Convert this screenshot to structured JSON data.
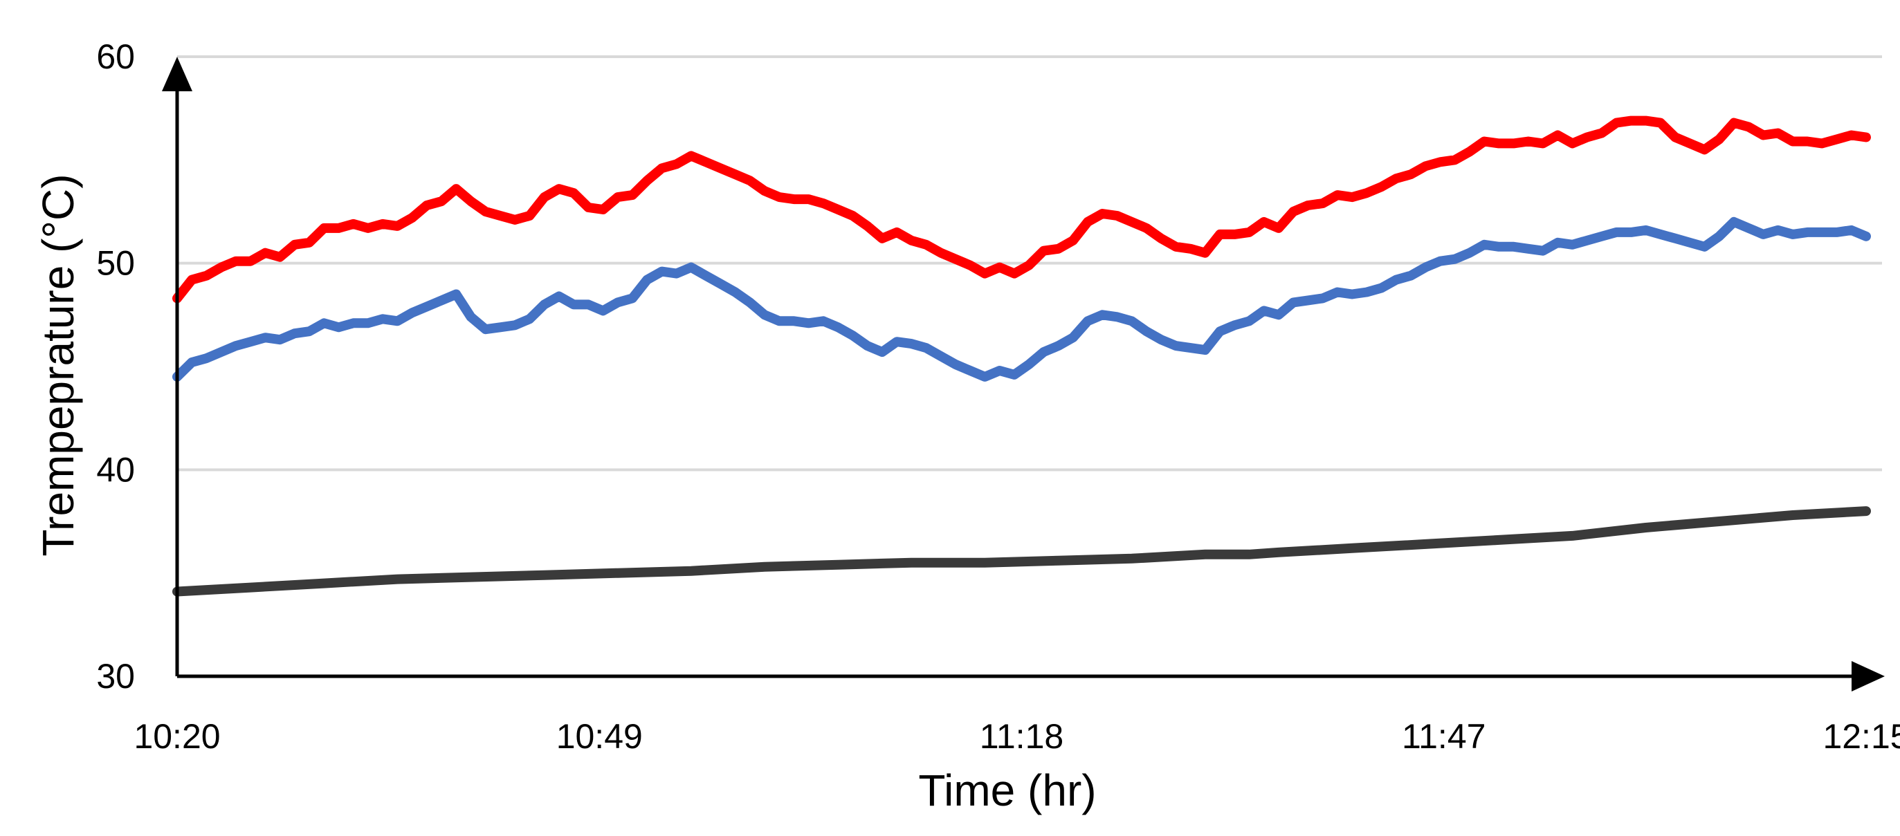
{
  "chart_data": {
    "type": "line",
    "title": "",
    "xlabel": "Time (hr)",
    "ylabel": "Trempeprature (°C)",
    "ylim": [
      30,
      60
    ],
    "xlim": [
      "10:20",
      "12:15"
    ],
    "x_ticks": [
      "10:20",
      "10:49",
      "11:18",
      "11:47",
      "12:15"
    ],
    "y_ticks": [
      30,
      40,
      50,
      60
    ],
    "grid": true,
    "legend": "none",
    "x_unit": "minutes since 10:20",
    "series": [
      {
        "color": "#ff0000",
        "x": [
          0,
          1,
          2,
          3,
          4,
          5,
          6,
          7,
          8,
          9,
          10,
          11,
          12,
          13,
          14,
          15,
          16,
          17,
          18,
          19,
          20,
          21,
          22,
          23,
          24,
          25,
          26,
          27,
          28,
          29,
          30,
          31,
          32,
          33,
          34,
          35,
          36,
          37,
          38,
          39,
          40,
          41,
          42,
          43,
          44,
          45,
          46,
          47,
          48,
          49,
          50,
          51,
          52,
          53,
          54,
          55,
          56,
          57,
          58,
          59,
          60,
          61,
          62,
          63,
          64,
          65,
          66,
          67,
          68,
          69,
          70,
          71,
          72,
          73,
          74,
          75,
          76,
          77,
          78,
          79,
          80,
          81,
          82,
          83,
          84,
          85,
          86,
          87,
          88,
          89,
          90,
          91,
          92,
          93,
          94,
          95,
          96,
          97,
          98,
          99,
          100,
          101,
          102,
          103,
          104,
          105,
          106,
          107,
          108,
          109,
          110,
          111,
          112,
          113,
          114,
          115
        ],
        "values": [
          48.3,
          49.2,
          49.4,
          49.8,
          50.1,
          50.1,
          50.5,
          50.3,
          50.9,
          51.0,
          51.7,
          51.7,
          51.9,
          51.7,
          51.9,
          51.8,
          52.2,
          52.8,
          53.0,
          53.6,
          53.0,
          52.5,
          52.3,
          52.1,
          52.3,
          53.2,
          53.6,
          53.4,
          52.7,
          52.6,
          53.2,
          53.3,
          54.0,
          54.6,
          54.8,
          55.2,
          54.9,
          54.6,
          54.3,
          54.0,
          53.5,
          53.2,
          53.1,
          53.1,
          52.9,
          52.6,
          52.3,
          51.8,
          51.2,
          51.5,
          51.1,
          50.9,
          50.5,
          50.2,
          49.9,
          49.5,
          49.8,
          49.5,
          49.9,
          50.6,
          50.7,
          51.1,
          52.0,
          52.4,
          52.3,
          52.0,
          51.7,
          51.2,
          50.8,
          50.7,
          50.5,
          51.4,
          51.4,
          51.5,
          52.0,
          51.7,
          52.5,
          52.8,
          52.9,
          53.3,
          53.2,
          53.4,
          53.7,
          54.1,
          54.3,
          54.7,
          54.9,
          55.0,
          55.4,
          55.9,
          55.8,
          55.8,
          55.9,
          55.8,
          56.2,
          55.8,
          56.1,
          56.3,
          56.8,
          56.9,
          56.9,
          56.8,
          56.1,
          55.8,
          55.5,
          56.0,
          56.8,
          56.6,
          56.2,
          56.3,
          55.9,
          55.9,
          55.8,
          56.0,
          56.2,
          56.1
        ]
      },
      {
        "color": "#4472c4",
        "x": [
          0,
          1,
          2,
          3,
          4,
          5,
          6,
          7,
          8,
          9,
          10,
          11,
          12,
          13,
          14,
          15,
          16,
          17,
          18,
          19,
          20,
          21,
          22,
          23,
          24,
          25,
          26,
          27,
          28,
          29,
          30,
          31,
          32,
          33,
          34,
          35,
          36,
          37,
          38,
          39,
          40,
          41,
          42,
          43,
          44,
          45,
          46,
          47,
          48,
          49,
          50,
          51,
          52,
          53,
          54,
          55,
          56,
          57,
          58,
          59,
          60,
          61,
          62,
          63,
          64,
          65,
          66,
          67,
          68,
          69,
          70,
          71,
          72,
          73,
          74,
          75,
          76,
          77,
          78,
          79,
          80,
          81,
          82,
          83,
          84,
          85,
          86,
          87,
          88,
          89,
          90,
          91,
          92,
          93,
          94,
          95,
          96,
          97,
          98,
          99,
          100,
          101,
          102,
          103,
          104,
          105,
          106,
          107,
          108,
          109,
          110,
          111,
          112,
          113,
          114,
          115
        ],
        "values": [
          44.5,
          45.2,
          45.4,
          45.7,
          46.0,
          46.2,
          46.4,
          46.3,
          46.6,
          46.7,
          47.1,
          46.9,
          47.1,
          47.1,
          47.3,
          47.2,
          47.6,
          47.9,
          48.2,
          48.5,
          47.4,
          46.8,
          46.9,
          47.0,
          47.3,
          48.0,
          48.4,
          48.0,
          48.0,
          47.7,
          48.1,
          48.3,
          49.2,
          49.6,
          49.5,
          49.8,
          49.4,
          49.0,
          48.6,
          48.1,
          47.5,
          47.2,
          47.2,
          47.1,
          47.2,
          46.9,
          46.5,
          46.0,
          45.7,
          46.2,
          46.1,
          45.9,
          45.5,
          45.1,
          44.8,
          44.5,
          44.8,
          44.6,
          45.1,
          45.7,
          46.0,
          46.4,
          47.2,
          47.5,
          47.4,
          47.2,
          46.7,
          46.3,
          46.0,
          45.9,
          45.8,
          46.7,
          47.0,
          47.2,
          47.7,
          47.5,
          48.1,
          48.2,
          48.3,
          48.6,
          48.5,
          48.6,
          48.8,
          49.2,
          49.4,
          49.8,
          50.1,
          50.2,
          50.5,
          50.9,
          50.8,
          50.8,
          50.7,
          50.6,
          51.0,
          50.9,
          51.1,
          51.3,
          51.5,
          51.5,
          51.6,
          51.4,
          51.2,
          51.0,
          50.8,
          51.3,
          52.0,
          51.7,
          51.4,
          51.6,
          51.4,
          51.5,
          51.5,
          51.5,
          51.6,
          51.3
        ]
      },
      {
        "color": "#3a3a3a",
        "x": [
          0,
          5,
          10,
          15,
          20,
          25,
          30,
          35,
          40,
          45,
          50,
          55,
          60,
          65,
          70,
          73,
          75,
          80,
          85,
          90,
          95,
          100,
          105,
          110,
          115
        ],
        "values": [
          34.1,
          34.3,
          34.5,
          34.7,
          34.8,
          34.9,
          35.0,
          35.1,
          35.3,
          35.4,
          35.5,
          35.5,
          35.6,
          35.7,
          35.9,
          35.9,
          36.0,
          36.2,
          36.4,
          36.6,
          36.8,
          37.2,
          37.5,
          37.8,
          38.0
        ]
      }
    ]
  }
}
